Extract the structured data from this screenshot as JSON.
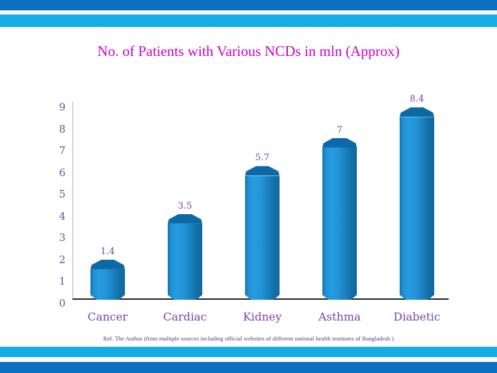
{
  "slide": {
    "title": "No. of Patients with Various NCDs in mln (Approx)",
    "footer_ref": "Ref. The Author (from multiple sources including official websites of different national health institutes of Bangladesh )"
  },
  "colors": {
    "band_dark_blue": "#0b70c2",
    "band_cyan": "#14ade6",
    "title_magenta": "#cc00cc",
    "axis_purple": "#6b4f9e",
    "label_purple": "#7b43a5",
    "bar_blue": "#1f8ed3",
    "bar_cap_blue": "#0d68a6",
    "axis_line_gray": "#b7afc8",
    "baseline_dark": "#23222e",
    "footer_text": "#4a3870"
  },
  "chart_data": {
    "type": "bar",
    "style": "3d-cylinder",
    "title": "No. of Patients with Various NCDs in mln (Approx)",
    "categories": [
      "Cancer",
      "Cardiac",
      "Kidney",
      "Asthma",
      "Diabetic"
    ],
    "values": [
      1.4,
      3.5,
      5.7,
      7,
      8.4
    ],
    "data_labels": [
      "1.4",
      "3.5",
      "5.7",
      "7",
      "8.4"
    ],
    "y_ticks": [
      0,
      1,
      2,
      3,
      4,
      5,
      6,
      7,
      8,
      9
    ],
    "ylim": [
      0,
      9
    ],
    "xlabel": "",
    "ylabel": "",
    "grid": false,
    "legend": false,
    "bar_color": "#1f8ed3"
  }
}
